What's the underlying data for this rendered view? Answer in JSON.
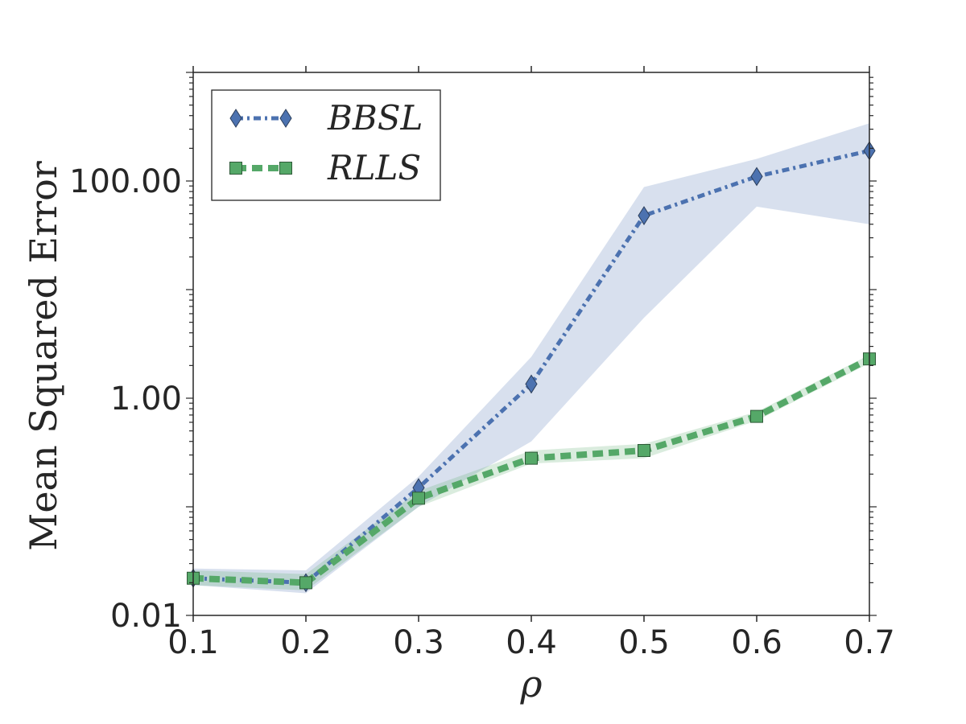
{
  "chart_data": {
    "type": "line",
    "xlabel": "ρ",
    "ylabel": "Mean Squared Error",
    "yscale": "log",
    "xlim": [
      0.1,
      0.7
    ],
    "ylim": [
      0.01,
      1000
    ],
    "x": [
      0.1,
      0.2,
      0.3,
      0.4,
      0.5,
      0.6,
      0.7
    ],
    "x_tick_labels": [
      "0.1",
      "0.2",
      "0.3",
      "0.4",
      "0.5",
      "0.6",
      "0.7"
    ],
    "y_ticks": [
      0.01,
      1,
      100
    ],
    "y_tick_labels": [
      "0.01",
      "1.00",
      "100.00"
    ],
    "grid": false,
    "legend_position": "top-left",
    "series": [
      {
        "name": "BBSL",
        "color": "#4c72b0",
        "marker": "diamond",
        "line_style": "dashdot",
        "values": [
          0.022,
          0.02,
          0.15,
          1.35,
          48,
          110,
          190
        ],
        "band_low": [
          0.019,
          0.016,
          0.1,
          0.4,
          5.5,
          58,
          40
        ],
        "band_high": [
          0.027,
          0.026,
          0.19,
          2.4,
          88,
          160,
          340
        ]
      },
      {
        "name": "RLLS",
        "color": "#55a868",
        "marker": "square",
        "line_style": "dashed",
        "values": [
          0.022,
          0.02,
          0.12,
          0.28,
          0.33,
          0.68,
          2.3
        ],
        "band_low": [
          0.019,
          0.017,
          0.1,
          0.25,
          0.28,
          0.62,
          2.1
        ],
        "band_high": [
          0.026,
          0.024,
          0.14,
          0.33,
          0.38,
          0.75,
          2.5
        ]
      }
    ]
  }
}
